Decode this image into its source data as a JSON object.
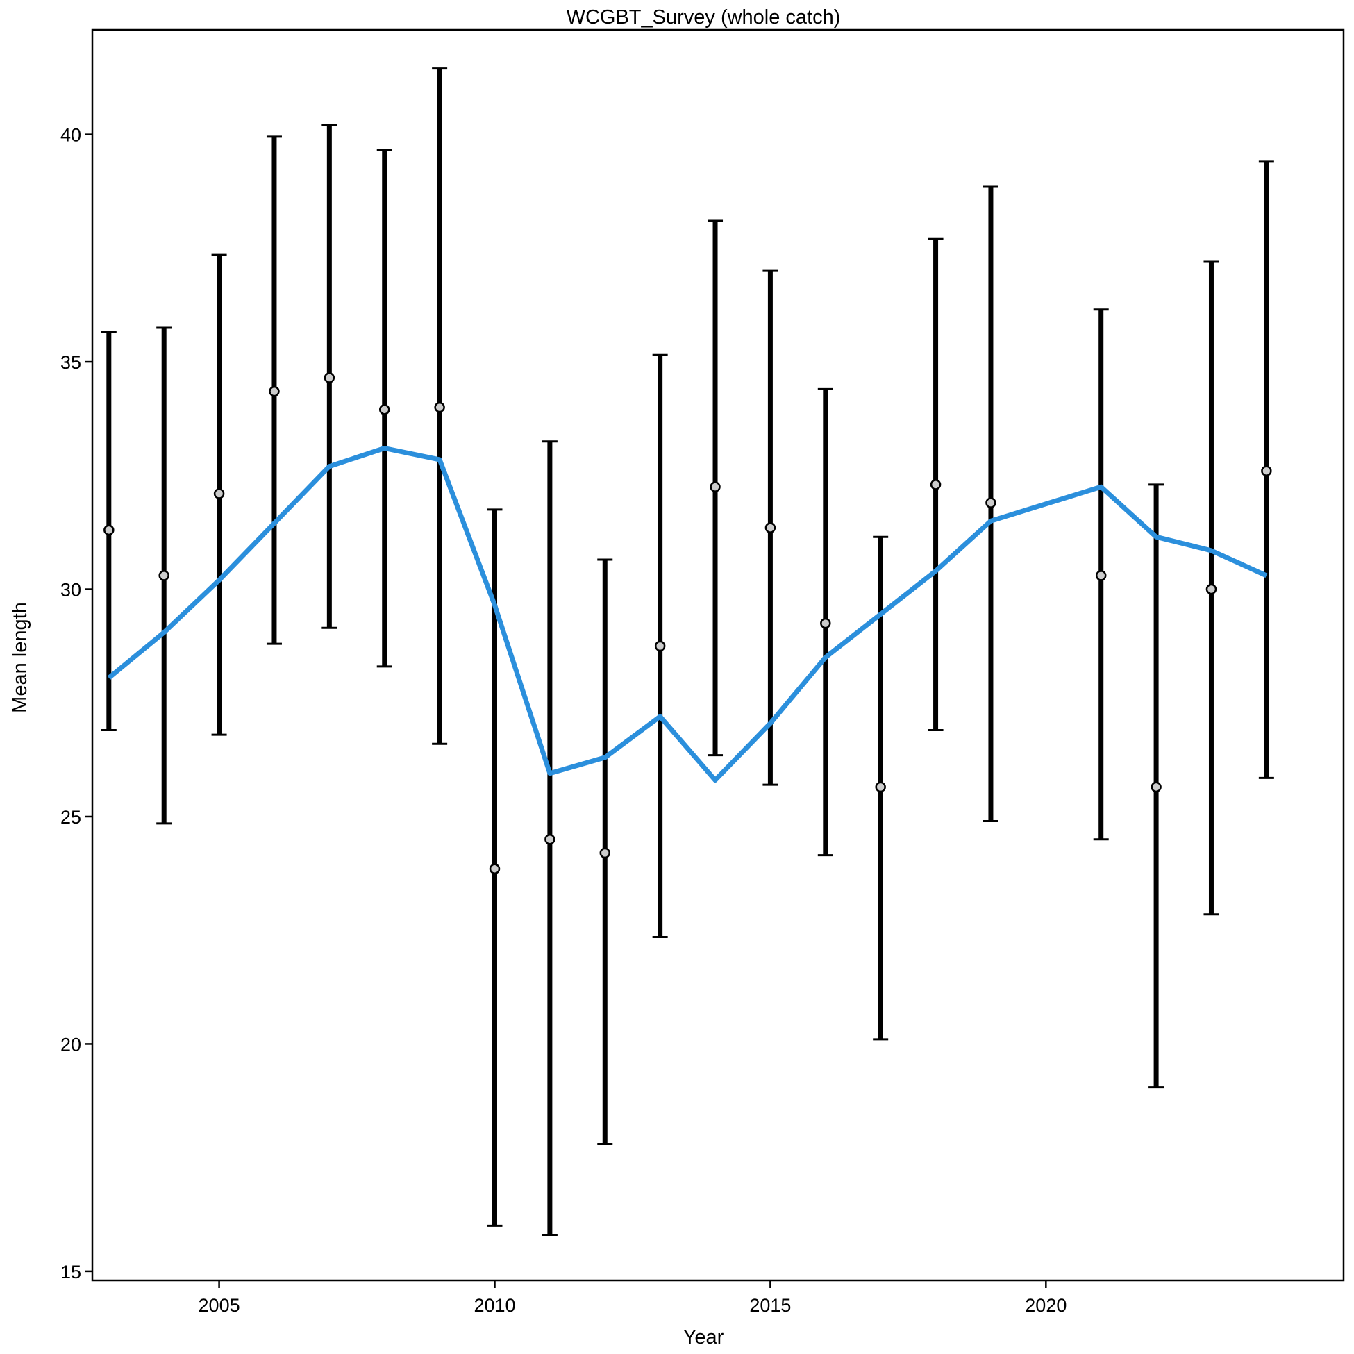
{
  "chart_data": {
    "type": "line",
    "title": "WCGBT_Survey (whole catch)",
    "xlabel": "Year",
    "ylabel": "Mean length",
    "xlim": [
      2002.7,
      2025.4
    ],
    "ylim": [
      14.8,
      42.3
    ],
    "xticks": [
      2005,
      2010,
      2015,
      2020
    ],
    "yticks": [
      15,
      20,
      25,
      30,
      35,
      40
    ],
    "grid": false,
    "x": [
      2003,
      2004,
      2005,
      2006,
      2007,
      2008,
      2009,
      2010,
      2011,
      2012,
      2013,
      2014,
      2015,
      2016,
      2017,
      2018,
      2019,
      2021,
      2022,
      2023,
      2024
    ],
    "series": [
      {
        "kind": "observed",
        "marker": "circle",
        "color": "#000000",
        "point_fill": "#cccccc",
        "values": [
          31.3,
          30.3,
          32.1,
          34.35,
          34.65,
          33.95,
          34.0,
          23.85,
          24.5,
          24.2,
          28.75,
          32.25,
          31.35,
          29.25,
          25.65,
          32.3,
          31.9,
          30.3,
          25.65,
          30.0,
          32.6
        ],
        "lower": [
          26.9,
          24.85,
          26.8,
          28.8,
          29.15,
          28.3,
          26.6,
          16.0,
          15.8,
          17.8,
          22.35,
          26.35,
          25.7,
          24.15,
          20.1,
          26.9,
          24.9,
          24.5,
          19.05,
          22.85,
          25.85
        ],
        "upper": [
          35.65,
          35.75,
          37.35,
          39.95,
          40.2,
          39.65,
          41.45,
          31.75,
          33.25,
          30.65,
          35.15,
          38.1,
          37.0,
          34.4,
          31.15,
          37.7,
          38.85,
          36.15,
          32.3,
          37.2,
          39.4
        ]
      },
      {
        "kind": "expected",
        "color": "#2b8fdc",
        "values": [
          28.05,
          29.05,
          30.2,
          31.45,
          32.7,
          33.1,
          32.85,
          29.65,
          25.95,
          26.3,
          27.2,
          25.8,
          27.05,
          28.5,
          29.45,
          30.4,
          31.5,
          32.25,
          31.15,
          30.85,
          30.3
        ]
      }
    ]
  }
}
